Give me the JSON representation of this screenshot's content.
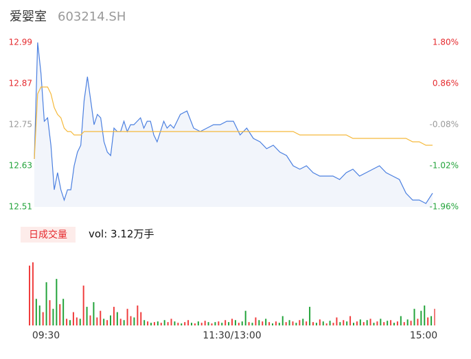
{
  "header": {
    "title": "爱婴室",
    "code": "603214.SH"
  },
  "chart_data": [
    {
      "type": "line",
      "x": [
        0,
        2,
        4,
        6,
        8,
        10,
        12,
        14,
        16,
        18,
        20,
        22,
        24,
        26,
        28,
        30,
        32,
        34,
        36,
        38,
        40,
        42,
        44,
        46,
        48,
        50,
        52,
        54,
        56,
        58,
        60,
        62,
        64,
        66,
        68,
        70,
        72,
        74,
        76,
        78,
        80,
        82,
        84,
        86,
        88,
        92,
        96,
        100,
        104,
        108,
        112,
        116,
        120,
        124,
        128,
        132,
        136,
        140,
        144,
        148,
        152,
        156,
        160,
        164,
        168,
        172,
        176,
        180,
        184,
        188,
        192,
        196,
        200,
        204,
        208,
        212,
        216,
        220,
        224,
        228,
        232,
        236,
        240
      ],
      "xlim": [
        0,
        240
      ],
      "series": [
        {
          "name": "price",
          "color": "#4a7fe0",
          "values": [
            12.65,
            12.99,
            12.9,
            12.76,
            12.77,
            12.69,
            12.56,
            12.61,
            12.56,
            12.53,
            12.56,
            12.56,
            12.63,
            12.67,
            12.69,
            12.82,
            12.89,
            12.82,
            12.75,
            12.78,
            12.77,
            12.7,
            12.67,
            12.66,
            12.74,
            12.73,
            12.73,
            12.76,
            12.73,
            12.75,
            12.75,
            12.76,
            12.77,
            12.74,
            12.76,
            12.76,
            12.72,
            12.7,
            12.73,
            12.76,
            12.74,
            12.75,
            12.74,
            12.76,
            12.78,
            12.79,
            12.74,
            12.73,
            12.74,
            12.75,
            12.75,
            12.76,
            12.76,
            12.72,
            12.74,
            12.71,
            12.7,
            12.68,
            12.69,
            12.67,
            12.66,
            12.63,
            12.62,
            12.63,
            12.61,
            12.6,
            12.6,
            12.6,
            12.59,
            12.61,
            12.62,
            12.6,
            12.61,
            12.62,
            12.63,
            12.61,
            12.6,
            12.59,
            12.55,
            12.53,
            12.53,
            12.52,
            12.55
          ]
        },
        {
          "name": "average",
          "color": "#f5b93a",
          "values": [
            12.65,
            12.84,
            12.86,
            12.86,
            12.86,
            12.84,
            12.8,
            12.78,
            12.77,
            12.74,
            12.73,
            12.73,
            12.72,
            12.72,
            12.72,
            12.73,
            12.73,
            12.73,
            12.73,
            12.73,
            12.73,
            12.73,
            12.73,
            12.73,
            12.73,
            12.73,
            12.73,
            12.73,
            12.73,
            12.73,
            12.73,
            12.73,
            12.73,
            12.73,
            12.73,
            12.73,
            12.73,
            12.73,
            12.73,
            12.73,
            12.73,
            12.73,
            12.73,
            12.73,
            12.73,
            12.73,
            12.73,
            12.73,
            12.73,
            12.73,
            12.73,
            12.73,
            12.73,
            12.73,
            12.73,
            12.73,
            12.73,
            12.73,
            12.73,
            12.73,
            12.73,
            12.73,
            12.72,
            12.72,
            12.72,
            12.72,
            12.72,
            12.72,
            12.72,
            12.72,
            12.71,
            12.71,
            12.71,
            12.71,
            12.71,
            12.71,
            12.71,
            12.71,
            12.71,
            12.7,
            12.7,
            12.69,
            12.69
          ]
        }
      ],
      "ylim": [
        12.51,
        12.99
      ],
      "yticks": [
        12.99,
        12.87,
        12.75,
        12.63,
        12.51
      ],
      "y2lim": [
        -1.96,
        1.8
      ],
      "y2ticks": [
        {
          "value": 1.8,
          "label": "1.80%"
        },
        {
          "value": 0.86,
          "label": "0.86%"
        },
        {
          "value": -0.08,
          "label": "-0.08%"
        },
        {
          "value": -1.02,
          "label": "-1.02%"
        },
        {
          "value": -1.96,
          "label": "-1.96%"
        }
      ],
      "tick_colors": [
        "#e5292d",
        "#e5292d",
        "#999999",
        "#22a33a",
        "#22a33a"
      ],
      "area_color": "#f2f5fb"
    },
    {
      "type": "bar",
      "label": "日成交量",
      "summary": "vol: 3.12万手",
      "xlim": [
        0,
        240
      ],
      "xticks": [
        {
          "value": 0,
          "label": "09:30"
        },
        {
          "value": 120,
          "label": "11:30/13:00"
        },
        {
          "value": 240,
          "label": "15:00"
        }
      ],
      "ylim": [
        0,
        100
      ],
      "values": [
        90,
        95,
        40,
        30,
        20,
        65,
        38,
        25,
        70,
        32,
        40,
        10,
        8,
        20,
        12,
        10,
        60,
        28,
        15,
        35,
        12,
        22,
        10,
        8,
        15,
        28,
        20,
        10,
        8,
        25,
        14,
        12,
        30,
        20,
        8,
        6,
        4,
        5,
        6,
        4,
        8,
        5,
        10,
        6,
        4,
        3,
        5,
        8,
        4,
        3,
        6,
        4,
        7,
        5,
        3,
        5,
        6,
        4,
        8,
        5,
        10,
        8,
        4,
        6,
        22,
        5,
        4,
        12,
        8,
        6,
        10,
        5,
        3,
        6,
        4,
        14,
        5,
        8,
        6,
        4,
        8,
        10,
        6,
        28,
        5,
        4,
        9,
        6,
        3,
        7,
        4,
        12,
        5,
        8,
        6,
        14,
        4,
        6,
        9,
        5,
        8,
        10,
        4,
        6,
        10,
        5,
        7,
        8,
        4,
        6,
        14,
        5,
        9,
        7,
        25,
        10,
        22,
        30,
        12,
        14,
        25
      ],
      "colors": [
        "#f03c3c",
        "#f03c3c",
        "#22a33a",
        "#22a33a",
        "#f03c3c",
        "#22a33a",
        "#f03c3c",
        "#22a33a",
        "#22a33a",
        "#f03c3c",
        "#22a33a",
        "#f03c3c",
        "#22a33a",
        "#f03c3c",
        "#f03c3c",
        "#22a33a",
        "#f03c3c",
        "#22a33a",
        "#f03c3c",
        "#22a33a",
        "#f03c3c",
        "#f03c3c",
        "#22a33a",
        "#f03c3c",
        "#22a33a",
        "#f03c3c",
        "#22a33a",
        "#f03c3c",
        "#22a33a",
        "#f03c3c",
        "#f03c3c",
        "#22a33a",
        "#f03c3c",
        "#f03c3c",
        "#22a33a",
        "#f03c3c",
        "#22a33a",
        "#f03c3c",
        "#22a33a",
        "#f03c3c",
        "#22a33a",
        "#f03c3c",
        "#f03c3c",
        "#22a33a",
        "#f03c3c",
        "#22a33a",
        "#f03c3c",
        "#f03c3c",
        "#22a33a",
        "#f03c3c",
        "#22a33a",
        "#f03c3c",
        "#f03c3c",
        "#22a33a",
        "#f03c3c",
        "#22a33a",
        "#f03c3c",
        "#22a33a",
        "#f03c3c",
        "#22a33a",
        "#f03c3c",
        "#22a33a",
        "#f03c3c",
        "#22a33a",
        "#22a33a",
        "#f03c3c",
        "#22a33a",
        "#f03c3c",
        "#22a33a",
        "#f03c3c",
        "#22a33a",
        "#f03c3c",
        "#22a33a",
        "#f03c3c",
        "#22a33a",
        "#22a33a",
        "#f03c3c",
        "#22a33a",
        "#f03c3c",
        "#22a33a",
        "#f03c3c",
        "#22a33a",
        "#f03c3c",
        "#22a33a",
        "#f03c3c",
        "#22a33a",
        "#f03c3c",
        "#22a33a",
        "#f03c3c",
        "#22a33a",
        "#f03c3c",
        "#f03c3c",
        "#22a33a",
        "#f03c3c",
        "#22a33a",
        "#f03c3c",
        "#22a33a",
        "#f03c3c",
        "#22a33a",
        "#f03c3c",
        "#22a33a",
        "#f03c3c",
        "#22a33a",
        "#f03c3c",
        "#22a33a",
        "#f03c3c",
        "#22a33a",
        "#f03c3c",
        "#22a33a",
        "#f03c3c",
        "#22a33a",
        "#f03c3c",
        "#22a33a",
        "#f03c3c",
        "#22a33a",
        "#f03c3c",
        "#22a33a",
        "#22a33a",
        "#f03c3c",
        "#22a33a",
        "#f07a7a"
      ]
    }
  ]
}
